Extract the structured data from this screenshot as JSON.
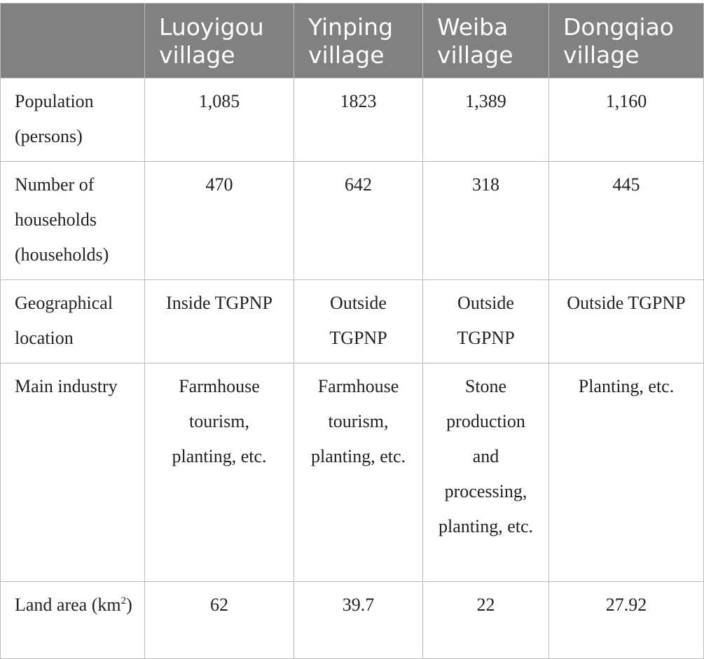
{
  "table": {
    "headers": [
      "",
      "Luoyigou village",
      "Yinping village",
      "Weiba village",
      "Dongqiao village"
    ],
    "rows": {
      "population": {
        "label": "Population (persons)",
        "values": [
          "1,085",
          "1823",
          "1,389",
          "1,160"
        ]
      },
      "households": {
        "label": "Number of households (households)",
        "values": [
          "470",
          "642",
          "318",
          "445"
        ]
      },
      "location": {
        "label": "Geographical location",
        "values": [
          "Inside TGPNP",
          "Outside TGPNP",
          "Outside TGPNP",
          "Outside TGPNP"
        ]
      },
      "industry": {
        "label": "Main industry",
        "values": [
          "Farmhouse tourism, planting, etc.",
          "Farmhouse tourism, planting, etc.",
          "Stone production and processing, planting, etc.",
          "Planting, etc."
        ]
      },
      "land_area": {
        "label_text": "Land area (km",
        "label_sup": "2",
        "label_close": ")",
        "values": [
          "62",
          "39.7",
          "22",
          "27.92"
        ]
      }
    }
  }
}
